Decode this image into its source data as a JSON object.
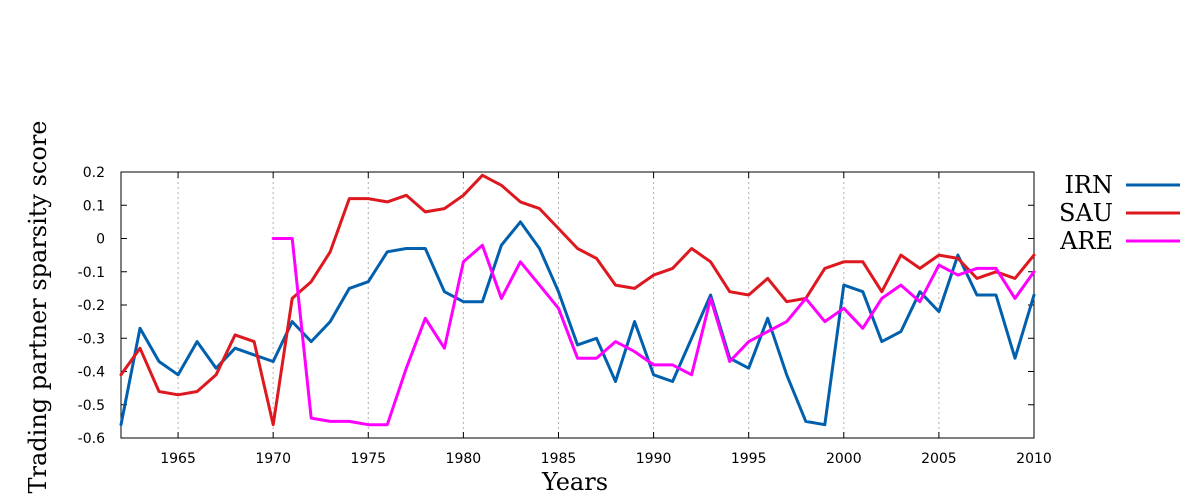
{
  "chart_data": {
    "type": "line",
    "xlabel": "Years",
    "ylabel": "Trading partner sparsity score",
    "xlim": [
      1962,
      2010
    ],
    "ylim": [
      -0.6,
      0.2
    ],
    "xticks": [
      1965,
      1970,
      1975,
      1980,
      1985,
      1990,
      1995,
      2000,
      2005,
      2010
    ],
    "xtick_labels": [
      "1965",
      "1970",
      "1975",
      "1980",
      "1985",
      "1990",
      "1995",
      "2000",
      "2005",
      "2010"
    ],
    "yticks": [
      0.2,
      0.1,
      0,
      -0.1,
      -0.2,
      -0.3,
      -0.4,
      -0.5,
      -0.6
    ],
    "ytick_labels": [
      "0.2",
      "0.1",
      "0",
      "-0.1",
      "-0.2",
      "-0.3",
      "-0.4",
      "-0.5",
      "-0.6"
    ],
    "grid": "vertical dotted",
    "legend_position": "right",
    "series": [
      {
        "name": "IRN",
        "color": "#0060ad",
        "x": [
          1962,
          1963,
          1964,
          1965,
          1966,
          1967,
          1968,
          1969,
          1970,
          1971,
          1972,
          1973,
          1974,
          1975,
          1976,
          1977,
          1978,
          1979,
          1980,
          1981,
          1982,
          1983,
          1984,
          1985,
          1986,
          1987,
          1988,
          1989,
          1990,
          1991,
          1992,
          1993,
          1994,
          1995,
          1996,
          1997,
          1998,
          1999,
          2000,
          2001,
          2002,
          2003,
          2004,
          2005,
          2006,
          2007,
          2008,
          2009,
          2010
        ],
        "values": [
          -0.56,
          -0.27,
          -0.37,
          -0.41,
          -0.31,
          -0.39,
          -0.33,
          -0.35,
          -0.37,
          -0.25,
          -0.31,
          -0.25,
          -0.15,
          -0.13,
          -0.04,
          -0.03,
          -0.03,
          -0.16,
          -0.19,
          -0.19,
          -0.02,
          0.05,
          -0.03,
          -0.16,
          -0.32,
          -0.3,
          -0.43,
          -0.25,
          -0.41,
          -0.43,
          -0.3,
          -0.17,
          -0.36,
          -0.39,
          -0.24,
          -0.41,
          -0.55,
          -0.56,
          -0.14,
          -0.16,
          -0.31,
          -0.28,
          -0.16,
          -0.22,
          -0.05,
          -0.17,
          -0.17,
          -0.36,
          -0.17
        ]
      },
      {
        "name": "SAU",
        "color": "#dd181f",
        "x": [
          1962,
          1963,
          1964,
          1965,
          1966,
          1967,
          1968,
          1969,
          1970,
          1971,
          1972,
          1973,
          1974,
          1975,
          1976,
          1977,
          1978,
          1979,
          1980,
          1981,
          1982,
          1983,
          1984,
          1985,
          1986,
          1987,
          1988,
          1989,
          1990,
          1991,
          1992,
          1993,
          1994,
          1995,
          1996,
          1997,
          1998,
          1999,
          2000,
          2001,
          2002,
          2003,
          2004,
          2005,
          2006,
          2007,
          2008,
          2009,
          2010
        ],
        "values": [
          -0.41,
          -0.33,
          -0.46,
          -0.47,
          -0.46,
          -0.41,
          -0.29,
          -0.31,
          -0.56,
          -0.18,
          -0.13,
          -0.04,
          0.12,
          0.12,
          0.11,
          0.13,
          0.08,
          0.09,
          0.13,
          0.19,
          0.16,
          0.11,
          0.09,
          0.03,
          -0.03,
          -0.06,
          -0.14,
          -0.15,
          -0.11,
          -0.09,
          -0.03,
          -0.07,
          -0.16,
          -0.17,
          -0.12,
          -0.19,
          -0.18,
          -0.09,
          -0.07,
          -0.07,
          -0.16,
          -0.05,
          -0.09,
          -0.05,
          -0.06,
          -0.12,
          -0.1,
          -0.12,
          -0.05
        ]
      },
      {
        "name": "ARE",
        "color": "#ff00ff",
        "x": [
          1970,
          1971,
          1972,
          1973,
          1974,
          1975,
          1976,
          1977,
          1978,
          1979,
          1980,
          1981,
          1982,
          1983,
          1984,
          1985,
          1986,
          1987,
          1988,
          1989,
          1990,
          1991,
          1992,
          1993,
          1994,
          1995,
          1996,
          1997,
          1998,
          1999,
          2000,
          2001,
          2002,
          2003,
          2004,
          2005,
          2006,
          2007,
          2008,
          2009,
          2010
        ],
        "values": [
          0,
          0,
          -0.54,
          -0.55,
          -0.55,
          -0.56,
          -0.56,
          -0.39,
          -0.24,
          -0.33,
          -0.07,
          -0.02,
          -0.18,
          -0.07,
          -0.14,
          -0.21,
          -0.36,
          -0.36,
          -0.31,
          -0.34,
          -0.38,
          -0.38,
          -0.41,
          -0.18,
          -0.37,
          -0.31,
          -0.28,
          -0.25,
          -0.18,
          -0.25,
          -0.21,
          -0.27,
          -0.18,
          -0.14,
          -0.19,
          -0.08,
          -0.11,
          -0.09,
          -0.09,
          -0.18,
          -0.1
        ]
      }
    ]
  }
}
